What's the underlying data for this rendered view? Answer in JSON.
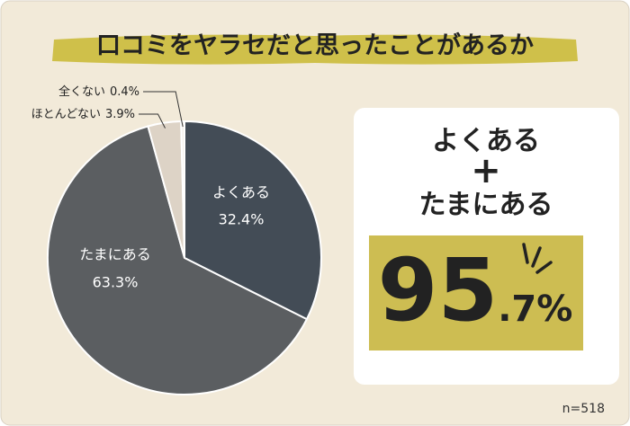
{
  "chart_data": {
    "type": "pie",
    "title": "口コミをヤラセだと思ったことがあるか",
    "categories": [
      "よくある",
      "たまにある",
      "ほとんどない",
      "全くない"
    ],
    "values": [
      32.4,
      63.3,
      3.9,
      0.4
    ],
    "value_labels": [
      "32.4%",
      "63.3%",
      "3.9%",
      "0.4%"
    ],
    "colors": [
      "#434c56",
      "#5b5e61",
      "#ddd3c6",
      "#f3efe9"
    ],
    "callout": {
      "line1": "よくある",
      "plus": "+",
      "line2": "たまにある",
      "total": 95.7,
      "total_label": "95.7%"
    },
    "note": "n=518"
  }
}
